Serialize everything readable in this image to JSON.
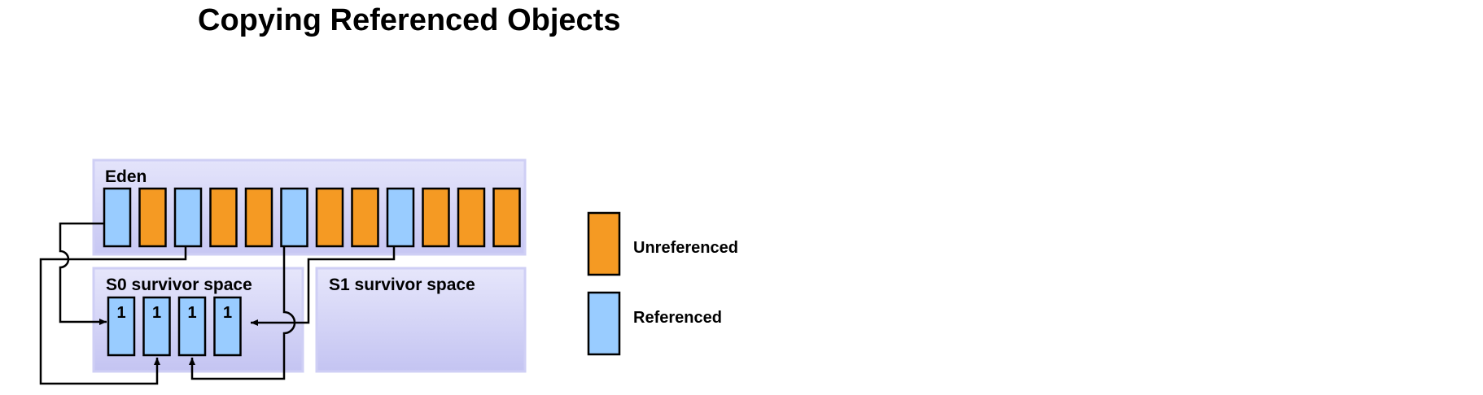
{
  "title": "Copying Referenced Objects",
  "regions": {
    "eden": "Eden",
    "s0": "S0 survivor space",
    "s1": "S1 survivor space"
  },
  "eden_objects": [
    "referenced",
    "unreferenced",
    "referenced",
    "unreferenced",
    "unreferenced",
    "referenced",
    "unreferenced",
    "unreferenced",
    "referenced",
    "unreferenced",
    "unreferenced",
    "unreferenced"
  ],
  "s0_objects": [
    {
      "state": "referenced",
      "age": "1"
    },
    {
      "state": "referenced",
      "age": "1"
    },
    {
      "state": "referenced",
      "age": "1"
    },
    {
      "state": "referenced",
      "age": "1"
    }
  ],
  "legend": {
    "unreferenced": "Unreferenced",
    "referenced": "Referenced"
  },
  "colors": {
    "referenced": "#99ccff",
    "unreferenced": "#f59a23",
    "region_fill": "#d6d6f7",
    "region_border": "#c8c8f0",
    "line": "#000000"
  }
}
